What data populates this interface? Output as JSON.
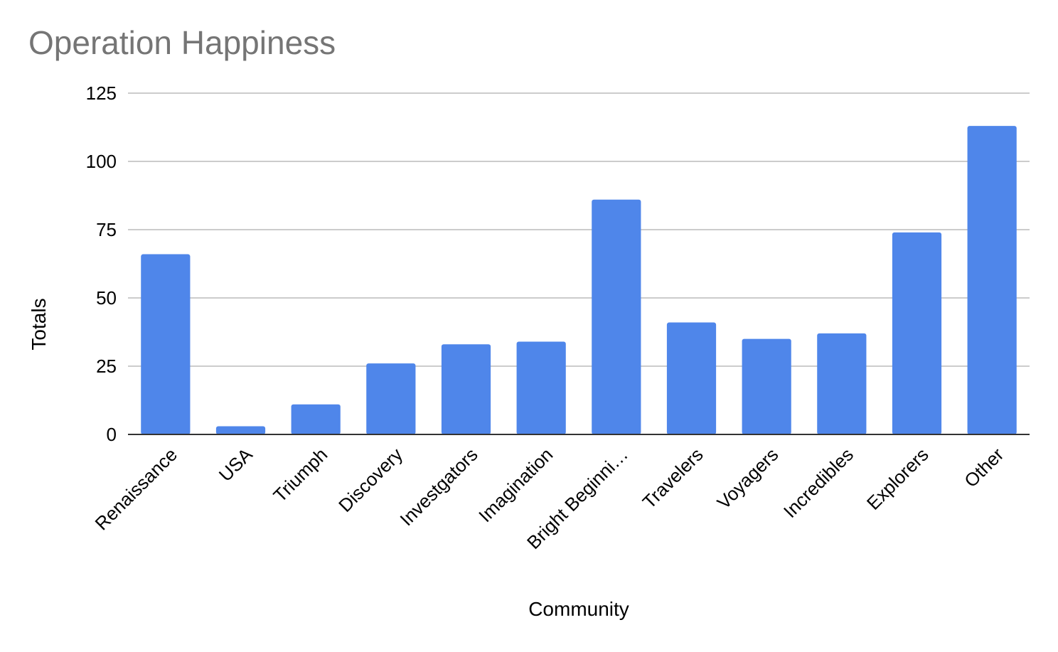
{
  "chart_data": {
    "type": "bar",
    "title": "Operation Happiness",
    "xlabel": "Community",
    "ylabel": "Totals",
    "categories": [
      "Renaissance",
      "USA",
      "Triumph",
      "Discovery",
      "Investgators",
      "Imagination",
      "Bright Beginni…",
      "Travelers",
      "Voyagers",
      "Incredibles",
      "Explorers",
      "Other"
    ],
    "values": [
      66,
      3,
      11,
      26,
      33,
      34,
      86,
      41,
      35,
      37,
      74,
      113
    ],
    "ylim": [
      0,
      125
    ],
    "yticks": [
      0,
      25,
      50,
      75,
      100,
      125
    ],
    "grid": true,
    "legend": "none",
    "colors": {
      "bar": "#4f86ea",
      "grid": "#cccccc",
      "baseline": "#333333",
      "title": "#757575"
    }
  }
}
